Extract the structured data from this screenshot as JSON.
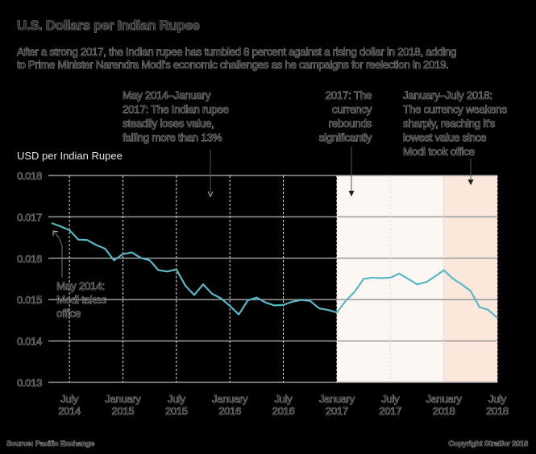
{
  "colors": {
    "line": "#5bb7c6",
    "shade_2017": "#fdf7f3",
    "shade_2018": "#fbe7dc",
    "grid": "#9a9a9a"
  },
  "header": {
    "title": "U.S. Dollars per Indian Rupee",
    "subtitle_line1": "After a strong 2017, the Indian rupee has tumbled 8 percent against a rising dollar in 2018, adding",
    "subtitle_line2": "to Prime Minister Narendra Modi's economic challenges as he campaigns for reelection in 2019."
  },
  "annotations": {
    "a1": [
      "May 2014–January",
      "2017: The Indian rupee",
      "steadily loses value,",
      "falling more than 13%"
    ],
    "a2": [
      "2017: The",
      "currency",
      "rebounds",
      "significantly"
    ],
    "a3": [
      "January–July 2018:",
      "The currency weakens",
      "sharply, reaching it's",
      "lowest value since",
      "Modi took office"
    ],
    "a4": [
      "May 2014:",
      "Modi takes",
      "office"
    ]
  },
  "footer": {
    "source": "Source: Pacific Exchange",
    "copyright": "Copyright Stratfor 2018"
  },
  "chart_data": {
    "type": "line",
    "title": "U.S. Dollars per Indian Rupee",
    "ylabel": "USD per Indian Rupee",
    "xlabel": "",
    "ylim": [
      0.013,
      0.018
    ],
    "yticks": [
      "0.013",
      "0.014",
      "0.015",
      "0.016",
      "0.017",
      "0.018"
    ],
    "xticks": [
      {
        "month": 2,
        "l1": "July",
        "l2": "2014"
      },
      {
        "month": 8,
        "l1": "January",
        "l2": "2015"
      },
      {
        "month": 14,
        "l1": "July",
        "l2": "2015"
      },
      {
        "month": 20,
        "l1": "January",
        "l2": "2016"
      },
      {
        "month": 26,
        "l1": "July",
        "l2": "2016"
      },
      {
        "month": 32,
        "l1": "January",
        "l2": "2017"
      },
      {
        "month": 38,
        "l1": "July",
        "l2": "2017"
      },
      {
        "month": 44,
        "l1": "January",
        "l2": "2018"
      },
      {
        "month": 50,
        "l1": "July",
        "l2": "2018"
      }
    ],
    "x_start": "May 2014",
    "x_end": "July 2018",
    "shaded_ranges": [
      {
        "from_month": 32,
        "to_month": 44,
        "label": "2017"
      },
      {
        "from_month": 44,
        "to_month": 50,
        "label": "2018"
      }
    ],
    "series": [
      {
        "name": "USD per INR",
        "values": [
          0.01685,
          0.01677,
          0.01668,
          0.01645,
          0.01644,
          0.01632,
          0.01623,
          0.01595,
          0.0161,
          0.01614,
          0.01601,
          0.01595,
          0.01571,
          0.01568,
          0.01573,
          0.01534,
          0.01511,
          0.01537,
          0.01514,
          0.01503,
          0.01485,
          0.01464,
          0.01498,
          0.01505,
          0.01493,
          0.01486,
          0.01487,
          0.01495,
          0.01499,
          0.01497,
          0.01479,
          0.01475,
          0.01469,
          0.01497,
          0.01519,
          0.0155,
          0.01553,
          0.01552,
          0.01553,
          0.01563,
          0.0155,
          0.01537,
          0.01542,
          0.01556,
          0.01571,
          0.01551,
          0.01537,
          0.01521,
          0.01482,
          0.01475,
          0.01456
        ]
      }
    ]
  }
}
